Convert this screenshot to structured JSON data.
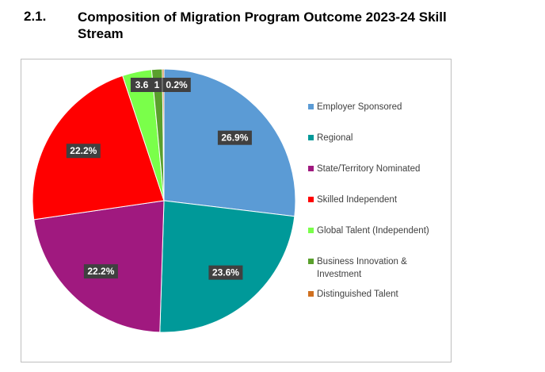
{
  "section": {
    "number": "2.1.",
    "title": "Composition of Migration Program Outcome 2023-24 Skill Stream"
  },
  "chart_data": {
    "type": "pie",
    "title": "",
    "legend_position": "right",
    "slices": [
      {
        "name": "Employer Sponsored",
        "value": 26.9,
        "label": "26.9%",
        "color": "#5b9bd5"
      },
      {
        "name": "Regional",
        "value": 23.6,
        "label": "23.6%",
        "color": "#009999"
      },
      {
        "name": "State/Territory Nominated",
        "value": 22.2,
        "label": "22.2%",
        "color": "#a0197f"
      },
      {
        "name": "Skilled Independent",
        "value": 22.2,
        "label": "22.2%",
        "color": "#ff0000"
      },
      {
        "name": "Global Talent (Independent)",
        "value": 3.6,
        "label": "3.6",
        "color": "#7aff4a"
      },
      {
        "name": "Business Innovation & Investment",
        "value": 1.3,
        "label": "1",
        "color": "#5aa02c"
      },
      {
        "name": "Distinguished Talent",
        "value": 0.2,
        "label": "0.2%",
        "color": "#d07020"
      }
    ]
  }
}
